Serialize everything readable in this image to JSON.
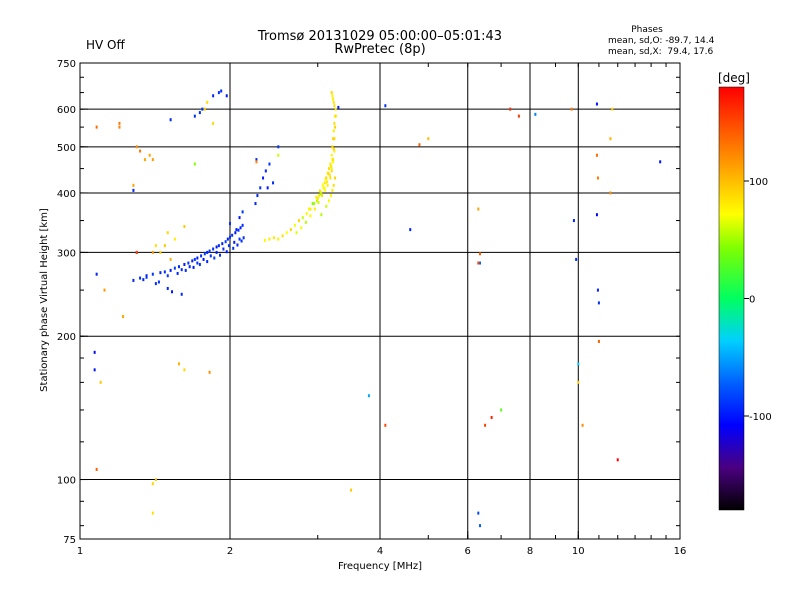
{
  "header": {
    "title": "Tromsø 20131029 05:00:00–05:01:43",
    "subtitle": "RwPretec (8p)",
    "hv_status": "HV Off",
    "hv_color": "#cc0000"
  },
  "phase_stats": {
    "title": "Phases",
    "line_o": "mean, sd,O: -89.7, 14.4",
    "line_x": "mean, sd,X:  79.4, 17.6"
  },
  "colorbar": {
    "label": "[deg]",
    "min": -180,
    "max": 180,
    "ticks": [
      {
        "value": 100,
        "label": "100"
      },
      {
        "value": 0,
        "label": "0"
      },
      {
        "value": -100,
        "label": "-100"
      }
    ]
  },
  "chart_data": {
    "type": "scatter",
    "title": "Tromsø 20131029 05:00:00–05:01:43",
    "subtitle": "RwPretec (8p)",
    "xlabel": "Frequency [MHz]",
    "ylabel": "Stationary phase Virtual Height [km]",
    "xscale": "log",
    "yscale": "log",
    "xlim": [
      1,
      16
    ],
    "ylim": [
      75,
      750
    ],
    "x_ticks": [
      {
        "value": 1,
        "label": "1"
      },
      {
        "value": 2,
        "label": "2"
      },
      {
        "value": 4,
        "label": "4"
      },
      {
        "value": 6,
        "label": "6"
      },
      {
        "value": 8,
        "label": "8"
      },
      {
        "value": 10,
        "label": "10"
      },
      {
        "value": 16,
        "label": "16"
      }
    ],
    "y_ticks": [
      {
        "value": 75,
        "label": "75"
      },
      {
        "value": 100,
        "label": "100"
      },
      {
        "value": 200,
        "label": "200"
      },
      {
        "value": 300,
        "label": "300"
      },
      {
        "value": 400,
        "label": "400"
      },
      {
        "value": 500,
        "label": "500"
      },
      {
        "value": 600,
        "label": "600"
      },
      {
        "value": 750,
        "label": "750"
      }
    ],
    "x_gridlines": [
      2,
      4,
      6,
      8,
      10
    ],
    "y_gridlines": [
      100,
      200,
      300,
      400,
      500,
      600
    ],
    "color_by": "phase [deg]",
    "series": [
      {
        "name": "O-mode trace",
        "phase_mean": -89.7,
        "phase_sd": 14.4,
        "x": [
          1.28,
          1.32,
          1.36,
          1.4,
          1.45,
          1.48,
          1.52,
          1.55,
          1.58,
          1.62,
          1.65,
          1.68,
          1.7,
          1.72,
          1.75,
          1.78,
          1.8,
          1.82,
          1.85,
          1.88,
          1.9,
          1.93,
          1.96,
          1.98,
          2.0,
          2.02,
          2.05,
          2.08,
          2.1,
          2.12,
          1.6,
          1.66,
          1.72,
          1.77,
          1.83,
          1.88,
          1.94,
          1.99,
          2.04,
          2.09,
          1.5,
          1.57,
          1.63,
          1.69,
          1.74,
          1.8,
          1.86,
          1.91,
          1.97,
          2.03,
          2.07,
          2.11,
          2.13,
          2.06,
          2.0,
          2.09,
          2.12,
          2.25,
          2.27,
          2.3,
          2.33,
          2.36,
          2.4,
          2.26,
          2.38,
          1.52,
          1.7,
          1.74,
          1.76,
          1.85,
          1.9,
          1.92,
          1.97,
          1.34,
          1.36,
          1.42,
          1.44,
          1.5,
          1.53,
          1.6,
          1.3,
          1.28,
          2.44,
          2.5,
          1.08,
          1.07,
          1.07,
          6.3,
          6.35,
          10.9,
          10.9,
          10.95,
          11.0,
          9.8,
          9.9,
          14.6,
          3.3,
          4.1,
          4.6,
          8.2,
          3.8,
          6.35,
          10.0
        ],
        "y": [
          262,
          265,
          268,
          270,
          272,
          273,
          275,
          278,
          280,
          283,
          285,
          288,
          290,
          292,
          295,
          298,
          300,
          302,
          305,
          308,
          310,
          313,
          316,
          320,
          323,
          326,
          330,
          334,
          338,
          342,
          276,
          280,
          285,
          290,
          295,
          300,
          305,
          310,
          315,
          320,
          268,
          271,
          275,
          279,
          283,
          287,
          292,
          296,
          301,
          306,
          311,
          317,
          322,
          335,
          345,
          355,
          365,
          380,
          395,
          410,
          430,
          445,
          460,
          470,
          410,
          570,
          580,
          590,
          600,
          640,
          650,
          655,
          640,
          263,
          266,
          258,
          260,
          252,
          248,
          245,
          300,
          405,
          420,
          500,
          270,
          185,
          170,
          85,
          80,
          615,
          360,
          250,
          235,
          350,
          290,
          465,
          605,
          610,
          335,
          585,
          150,
          285,
          175
        ],
        "phase": [
          -95,
          -92,
          -100,
          -88,
          -95,
          -90,
          -98,
          -85,
          -92,
          -100,
          -88,
          -95,
          -90,
          -98,
          -92,
          -85,
          -95,
          -90,
          -88,
          -100,
          -92,
          -95,
          -85,
          -98,
          -90,
          -92,
          -100,
          -88,
          -95,
          -90,
          -92,
          -95,
          -88,
          -100,
          -90,
          -95,
          -92,
          -85,
          -98,
          -90,
          -88,
          -95,
          -92,
          -100,
          -90,
          -95,
          -85,
          -92,
          -98,
          -90,
          -95,
          -88,
          -92,
          -95,
          -90,
          -100,
          -88,
          -95,
          -92,
          -90,
          -98,
          -95,
          -88,
          -92,
          -100,
          -95,
          -90,
          -92,
          -88,
          -95,
          -90,
          -92,
          -98,
          -95,
          -90,
          -92,
          -88,
          -95,
          -100,
          -92,
          -90,
          -95,
          -92,
          -88,
          -95,
          -105,
          -100,
          -80,
          -75,
          -100,
          -110,
          -95,
          -90,
          -95,
          -92,
          -100,
          -95,
          -90,
          -95,
          -60,
          -50,
          -70,
          -40
        ]
      },
      {
        "name": "X-mode trace",
        "phase_mean": 79.4,
        "phase_sd": 17.6,
        "x": [
          2.35,
          2.4,
          2.45,
          2.5,
          2.55,
          2.6,
          2.65,
          2.7,
          2.75,
          2.8,
          2.85,
          2.9,
          2.95,
          3.0,
          3.02,
          3.05,
          3.08,
          3.1,
          3.12,
          3.14,
          3.16,
          3.18,
          3.2,
          3.21,
          3.22,
          3.23,
          3.24,
          3.25,
          3.26,
          2.72,
          2.78,
          2.84,
          2.9,
          2.96,
          3.01,
          3.06,
          3.1,
          3.14,
          3.18,
          3.2,
          3.22,
          3.24,
          2.88,
          2.93,
          2.98,
          3.03,
          3.07,
          3.11,
          3.15,
          3.19,
          3.21,
          3.23,
          2.99,
          3.04,
          3.09,
          3.13,
          3.17,
          3.2,
          3.22,
          3.24,
          3.25,
          3.26,
          3.05,
          3.12,
          3.16,
          3.19,
          3.21,
          3.23,
          3.25,
          3.24,
          3.23,
          3.22,
          3.21,
          3.2
        ],
        "y": [
          318,
          320,
          322,
          320,
          325,
          330,
          335,
          342,
          350,
          355,
          362,
          370,
          380,
          390,
          395,
          400,
          410,
          420,
          430,
          440,
          450,
          460,
          480,
          500,
          520,
          540,
          560,
          580,
          600,
          330,
          338,
          347,
          358,
          370,
          382,
          395,
          405,
          415,
          430,
          445,
          465,
          490,
          370,
          380,
          392,
          404,
          416,
          428,
          440,
          455,
          470,
          495,
          385,
          398,
          410,
          422,
          436,
          450,
          470,
          520,
          550,
          580,
          360,
          375,
          385,
          395,
          405,
          415,
          430,
          610,
          620,
          630,
          640,
          650
        ],
        "phase": [
          75,
          80,
          82,
          78,
          85,
          72,
          90,
          70,
          88,
          60,
          75,
          82,
          50,
          85,
          78,
          90,
          72,
          80,
          95,
          70,
          85,
          82,
          75,
          88,
          90,
          80,
          85,
          78,
          82,
          65,
          70,
          55,
          75,
          80,
          60,
          85,
          72,
          78,
          82,
          88,
          75,
          80,
          70,
          45,
          80,
          85,
          72,
          78,
          88,
          82,
          75,
          90,
          60,
          50,
          75,
          80,
          85,
          78,
          82,
          88,
          90,
          85,
          55,
          60,
          70,
          75,
          80,
          85,
          90,
          85,
          82,
          80,
          78,
          88
        ]
      },
      {
        "name": "scattered echoes",
        "x": [
          1.08,
          1.2,
          1.2,
          1.3,
          1.32,
          1.38,
          1.4,
          1.42,
          1.45,
          1.5,
          1.55,
          1.62,
          1.78,
          1.8,
          1.85,
          2.26,
          1.28,
          1.22,
          1.58,
          1.1,
          1.08,
          1.3,
          1.12,
          1.4,
          1.42,
          1.62,
          1.82,
          1.4,
          1.48,
          1.52,
          3.5,
          4.1,
          4.8,
          5.0,
          6.3,
          6.3,
          6.35,
          6.5,
          6.7,
          7.0,
          7.3,
          7.6,
          9.7,
          10.0,
          10.2,
          10.9,
          10.95,
          11.0,
          12.0,
          11.7,
          11.6,
          11.6,
          2.5,
          1.7,
          1.35,
          1.4
        ],
        "y": [
          550,
          560,
          550,
          500,
          490,
          480,
          470,
          310,
          300,
          330,
          320,
          340,
          600,
          620,
          560,
          465,
          415,
          220,
          175,
          160,
          105,
          300,
          250,
          98,
          100,
          170,
          168,
          85,
          310,
          290,
          95,
          130,
          505,
          520,
          370,
          285,
          298,
          130,
          135,
          140,
          600,
          580,
          600,
          160,
          130,
          480,
          430,
          195,
          110,
          600,
          520,
          400,
          480,
          460,
          470,
          300
        ],
        "phase": [
          135,
          130,
          125,
          120,
          130,
          110,
          115,
          85,
          90,
          88,
          80,
          95,
          92,
          85,
          88,
          125,
          110,
          110,
          105,
          95,
          140,
          150,
          115,
          90,
          92,
          88,
          120,
          85,
          95,
          105,
          95,
          150,
          140,
          100,
          110,
          150,
          140,
          150,
          165,
          30,
          160,
          155,
          130,
          95,
          120,
          135,
          130,
          140,
          185,
          90,
          105,
          120,
          60,
          45,
          110,
          115
        ]
      }
    ]
  }
}
